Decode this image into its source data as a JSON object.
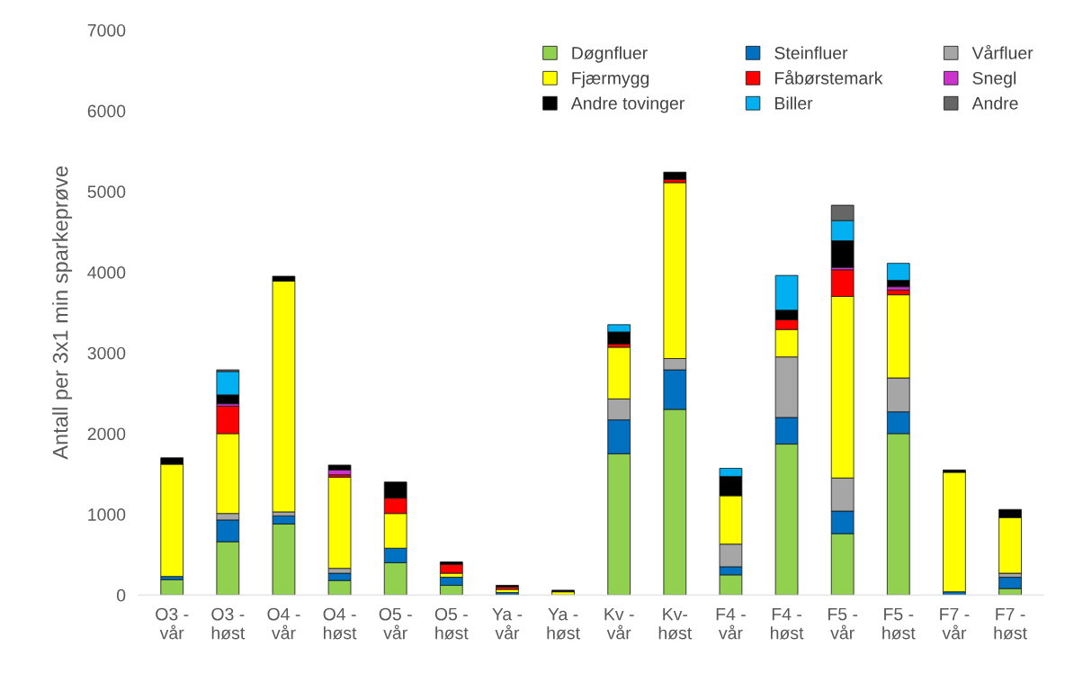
{
  "chart_data": {
    "type": "bar",
    "stacked": true,
    "ylabel": "Antall per 3x1 min sparkeprøve",
    "categories": [
      "O3 -\nvår",
      "O3 -\nhøst",
      "O4 -\nvår",
      "O4 -\nhøst",
      "O5 -\nvår",
      "O5 -\nhøst",
      "Ya -\nvår",
      "Ya -\nhøst",
      "Kv -\nvår",
      "Kv-\nhøst",
      "F4 -\nvår",
      "F4 -\nhøst",
      "F5 -\nvår",
      "F5 -\nhøst",
      "F7 -\nvår",
      "F7 -\nhøst"
    ],
    "series": [
      {
        "name": "Døgnfluer",
        "color": "#92d050",
        "values": [
          190,
          660,
          880,
          180,
          400,
          120,
          null,
          null,
          1750,
          2300,
          250,
          1870,
          760,
          2000,
          null,
          80
        ]
      },
      {
        "name": "Steinfluer",
        "color": "#0070c0",
        "values": [
          40,
          270,
          100,
          90,
          180,
          100,
          30,
          null,
          420,
          490,
          100,
          330,
          280,
          270,
          40,
          140
        ]
      },
      {
        "name": "Vårfluer",
        "color": "#a6a6a6",
        "values": [
          null,
          80,
          50,
          60,
          null,
          null,
          null,
          null,
          260,
          140,
          280,
          750,
          410,
          420,
          null,
          50
        ]
      },
      {
        "name": "Fjærmygg",
        "color": "#ffff00",
        "values": [
          1390,
          990,
          2860,
          1130,
          430,
          50,
          40,
          40,
          640,
          2180,
          600,
          340,
          2250,
          1030,
          1480,
          690
        ]
      },
      {
        "name": "Fåbørstemark",
        "color": "#ff0000",
        "values": [
          null,
          340,
          null,
          30,
          190,
          110,
          30,
          null,
          40,
          40,
          null,
          120,
          330,
          60,
          null,
          null
        ]
      },
      {
        "name": "Snegl",
        "color": "#cc33cc",
        "values": [
          null,
          30,
          null,
          60,
          null,
          null,
          null,
          null,
          null,
          null,
          null,
          null,
          30,
          40,
          null,
          null
        ]
      },
      {
        "name": "Andre tovinger",
        "color": "#000000",
        "values": [
          80,
          110,
          60,
          60,
          200,
          30,
          20,
          20,
          150,
          90,
          240,
          120,
          330,
          80,
          30,
          100
        ]
      },
      {
        "name": "Biller",
        "color": "#00b0f0",
        "values": [
          null,
          290,
          null,
          null,
          null,
          null,
          null,
          null,
          90,
          null,
          100,
          430,
          250,
          210,
          null,
          null
        ]
      },
      {
        "name": "Andre",
        "color": "#666666",
        "values": [
          null,
          20,
          null,
          null,
          null,
          null,
          null,
          null,
          null,
          null,
          null,
          null,
          190,
          null,
          null,
          null
        ]
      }
    ],
    "ylim": [
      0,
      7000
    ],
    "yticks": [
      0,
      1000,
      2000,
      3000,
      4000,
      5000,
      6000,
      7000
    ],
    "grid": false,
    "legend": "top right"
  }
}
